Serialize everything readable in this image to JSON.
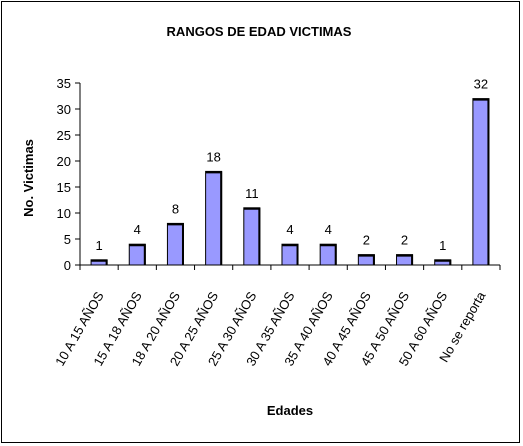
{
  "chart_data": {
    "type": "bar",
    "title": "RANGOS DE EDAD VICTIMAS",
    "xlabel": "Edades",
    "ylabel": "No. Victimas",
    "categories": [
      "10 A 15 AÑOS",
      "15 A 18 AÑOS",
      "18 A 20 AÑOS",
      "20 A 25 AÑOS",
      "25 A 30 AÑOS",
      "30 A 35 AÑOS",
      "35 A 40 AÑOS",
      "40 A 45 AÑOS",
      "45 A 50 AÑOS",
      "50 A 60 AÑOS",
      "No se reporta"
    ],
    "values": [
      1,
      4,
      8,
      18,
      11,
      4,
      4,
      2,
      2,
      1,
      32
    ],
    "ylim": [
      0,
      35
    ],
    "yticks": [
      0,
      5,
      10,
      15,
      20,
      25,
      30,
      35
    ],
    "grid": false,
    "legend": "none",
    "bar_color": "#9999ff"
  }
}
